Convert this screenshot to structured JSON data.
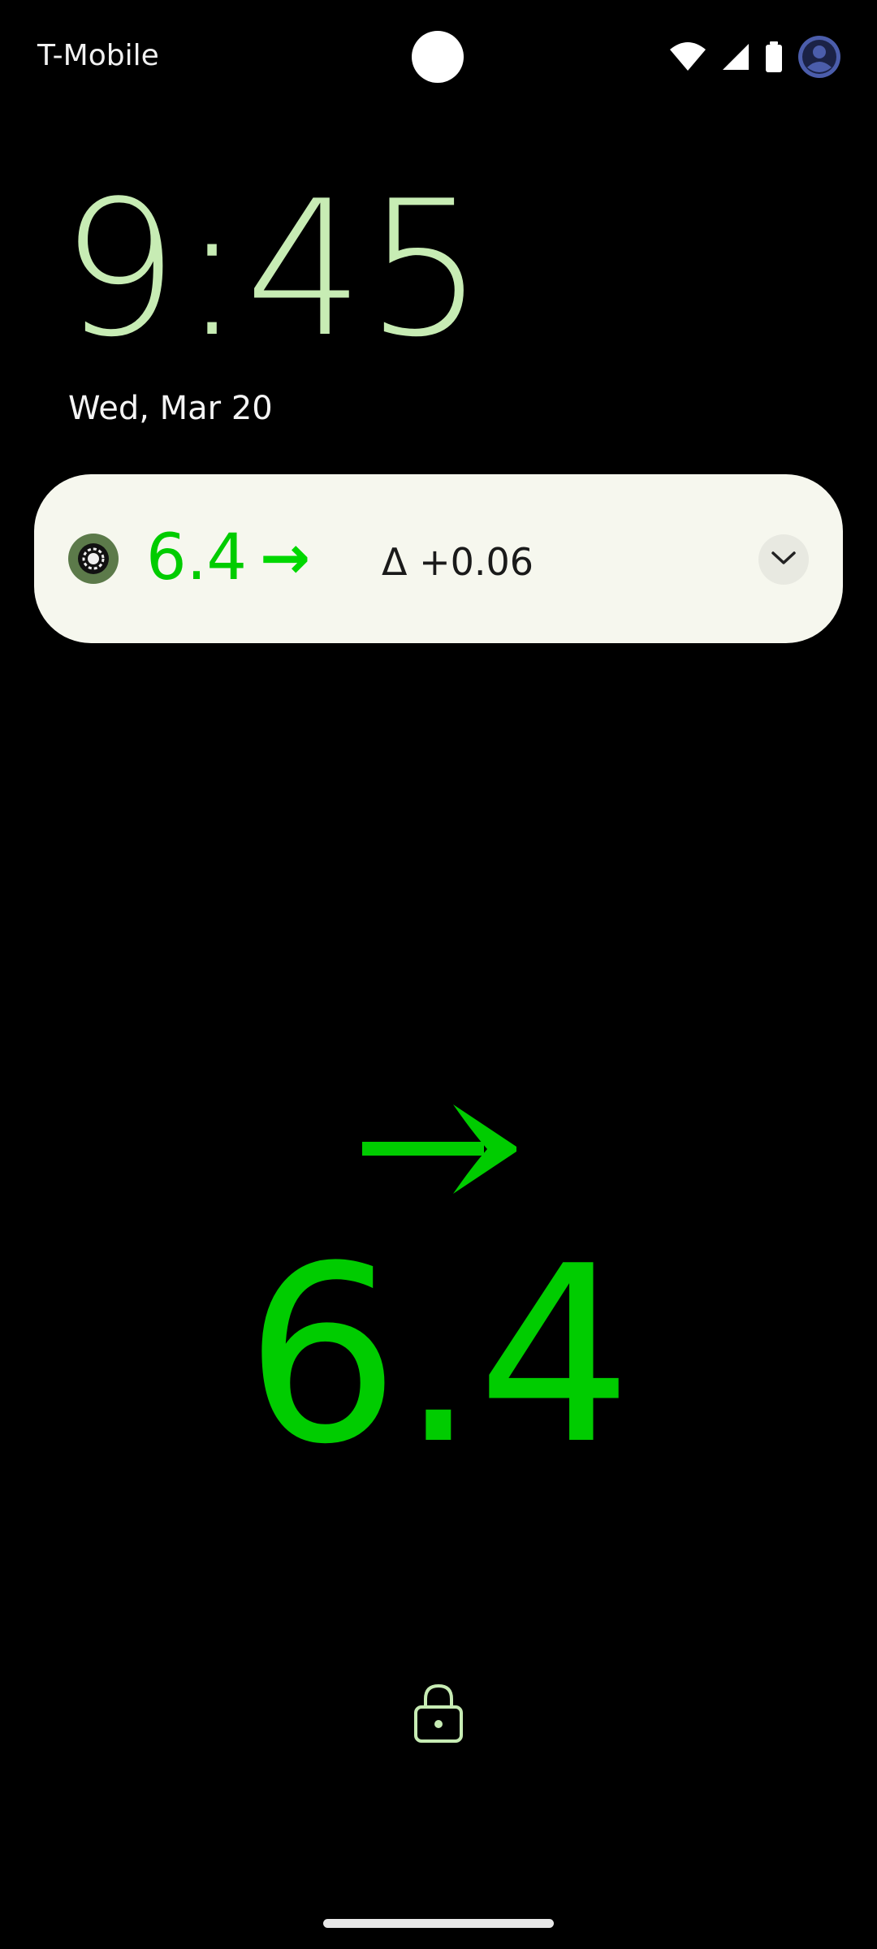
{
  "status_bar": {
    "carrier": "T-Mobile",
    "icons": [
      "wifi-icon",
      "cell-signal-icon",
      "battery-icon",
      "account-icon"
    ]
  },
  "lock_screen": {
    "time": "9:45",
    "date": "Wed, Mar 20"
  },
  "notification": {
    "app_icon": "app-logo-icon",
    "value": "6.4",
    "trend_arrow": "→",
    "delta": "Δ +0.06",
    "expand_icon": "chevron-down-icon"
  },
  "reading": {
    "value": "6.4",
    "trend_icon": "arrow-right-icon"
  },
  "colors": {
    "clock": "#c7ecb4",
    "reading_green": "#00cc00",
    "notification_bg": "#f6f7ee",
    "background": "#000000"
  }
}
